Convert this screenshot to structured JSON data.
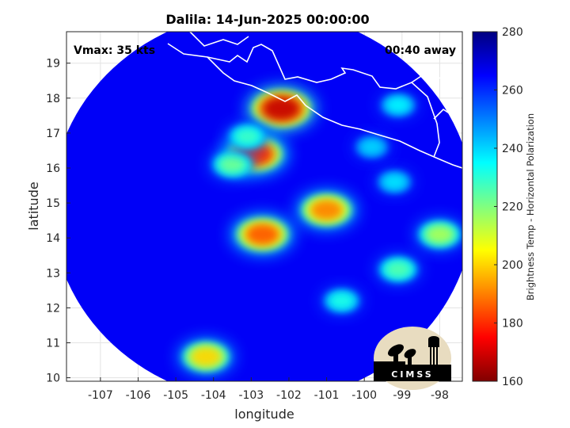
{
  "chart_data": {
    "type": "heatmap",
    "title": "Dalila: 14-Jun-2025 00:00:00",
    "xlabel": "longitude",
    "ylabel": "latitude",
    "xlim": [
      -107.9,
      -97.4
    ],
    "ylim": [
      9.9,
      19.9
    ],
    "x_ticks": [
      -107,
      -106,
      -105,
      -104,
      -103,
      -102,
      -101,
      -100,
      -99,
      -98
    ],
    "y_ticks": [
      10,
      11,
      12,
      13,
      14,
      15,
      16,
      17,
      18,
      19
    ],
    "grid": true,
    "colorbar": {
      "label": "Brightness Temp - Horizontal Polarization",
      "range": [
        160,
        280
      ],
      "ticks": [
        160,
        180,
        200,
        220,
        240,
        260,
        280
      ],
      "colormap": "jet",
      "stops": [
        "#800000",
        "#ff0000",
        "#ff8000",
        "#ffff00",
        "#80ff80",
        "#00ffff",
        "#0080ff",
        "#0000ff",
        "#000080"
      ]
    },
    "swath_center": [
      -102.7,
      14.9
    ],
    "swath_radius_deg": [
      5.6,
      5.6
    ],
    "background_value": 266,
    "features": [
      {
        "name": "rainband-north-hotspot",
        "lon": -102.2,
        "lat": 17.7,
        "value": 168
      },
      {
        "name": "rainband-core-west",
        "lon": -102.9,
        "lat": 16.4,
        "value": 178
      },
      {
        "name": "rainband-arc-west",
        "lon": -103.5,
        "lat": 16.1,
        "value": 222
      },
      {
        "name": "rainband-arc-northwest",
        "lon": -103.1,
        "lat": 16.9,
        "value": 228
      },
      {
        "name": "convective-cell-east",
        "lon": -101.0,
        "lat": 14.8,
        "value": 190
      },
      {
        "name": "convective-cell-center",
        "lon": -102.7,
        "lat": 14.1,
        "value": 185
      },
      {
        "name": "cell-southwest",
        "lon": -104.2,
        "lat": 10.6,
        "value": 200
      },
      {
        "name": "band-east",
        "lon": -99.2,
        "lat": 15.6,
        "value": 238
      },
      {
        "name": "band-east-north",
        "lon": -99.8,
        "lat": 16.6,
        "value": 240
      },
      {
        "name": "cell-far-east",
        "lon": -98.0,
        "lat": 14.1,
        "value": 215
      },
      {
        "name": "cell-southeast",
        "lon": -99.1,
        "lat": 13.1,
        "value": 225
      },
      {
        "name": "cell-south",
        "lon": -100.6,
        "lat": 12.2,
        "value": 232
      },
      {
        "name": "cell-north-east",
        "lon": -99.1,
        "lat": 17.8,
        "value": 236
      }
    ],
    "annotations": {
      "vmax": "Vmax: 35 kts",
      "time_away": "00:40 away"
    }
  },
  "logo": {
    "text": "CIMSS"
  }
}
